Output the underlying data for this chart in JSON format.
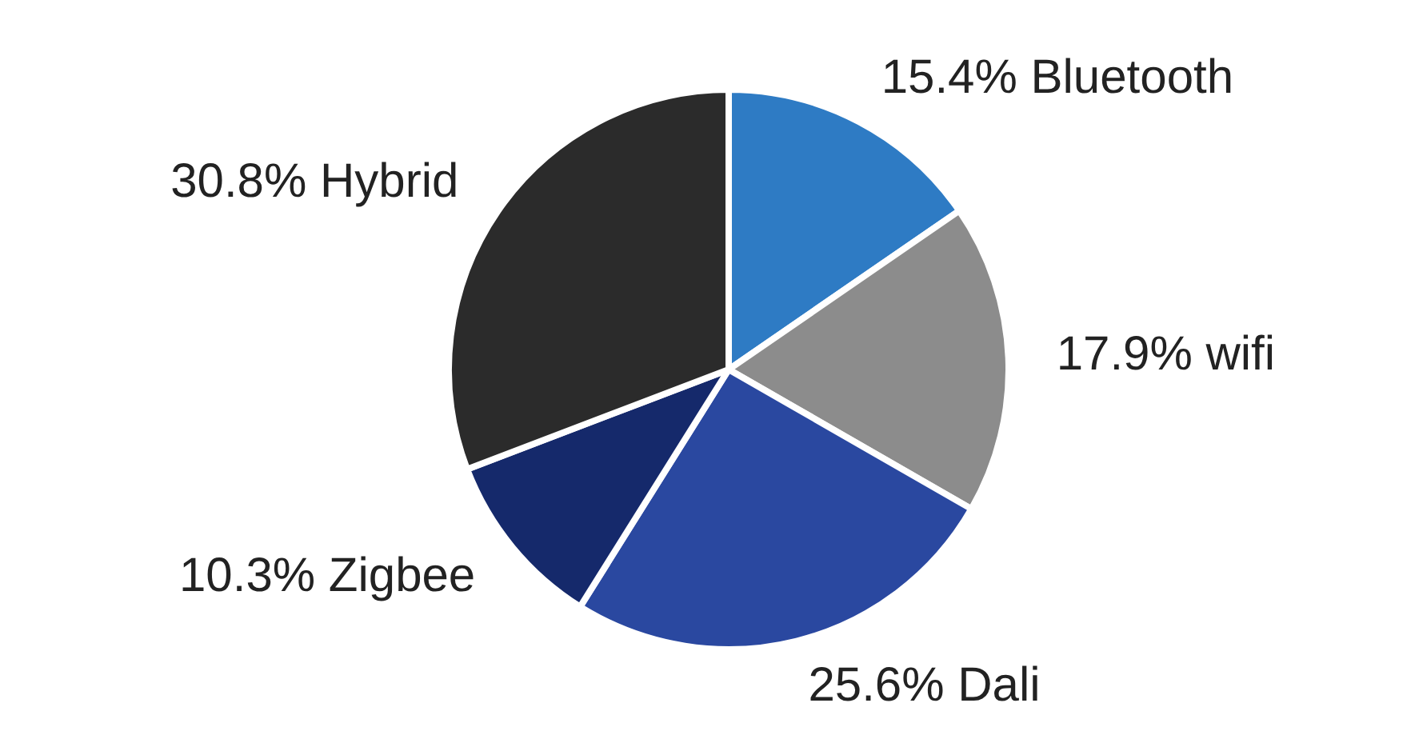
{
  "chart_data": {
    "type": "pie",
    "categories": [
      "Bluetooth",
      "wifi",
      "Dali",
      "Zigbee",
      "Hybrid"
    ],
    "values": [
      15.4,
      17.9,
      25.6,
      10.3,
      30.8
    ],
    "value_labels": [
      "15.4%",
      "17.9%",
      "25.6%",
      "10.3%",
      "30.8%"
    ],
    "colors": [
      "#2e7bc4",
      "#8c8c8c",
      "#2a48a0",
      "#15296b",
      "#2b2b2b"
    ],
    "legend": false
  }
}
